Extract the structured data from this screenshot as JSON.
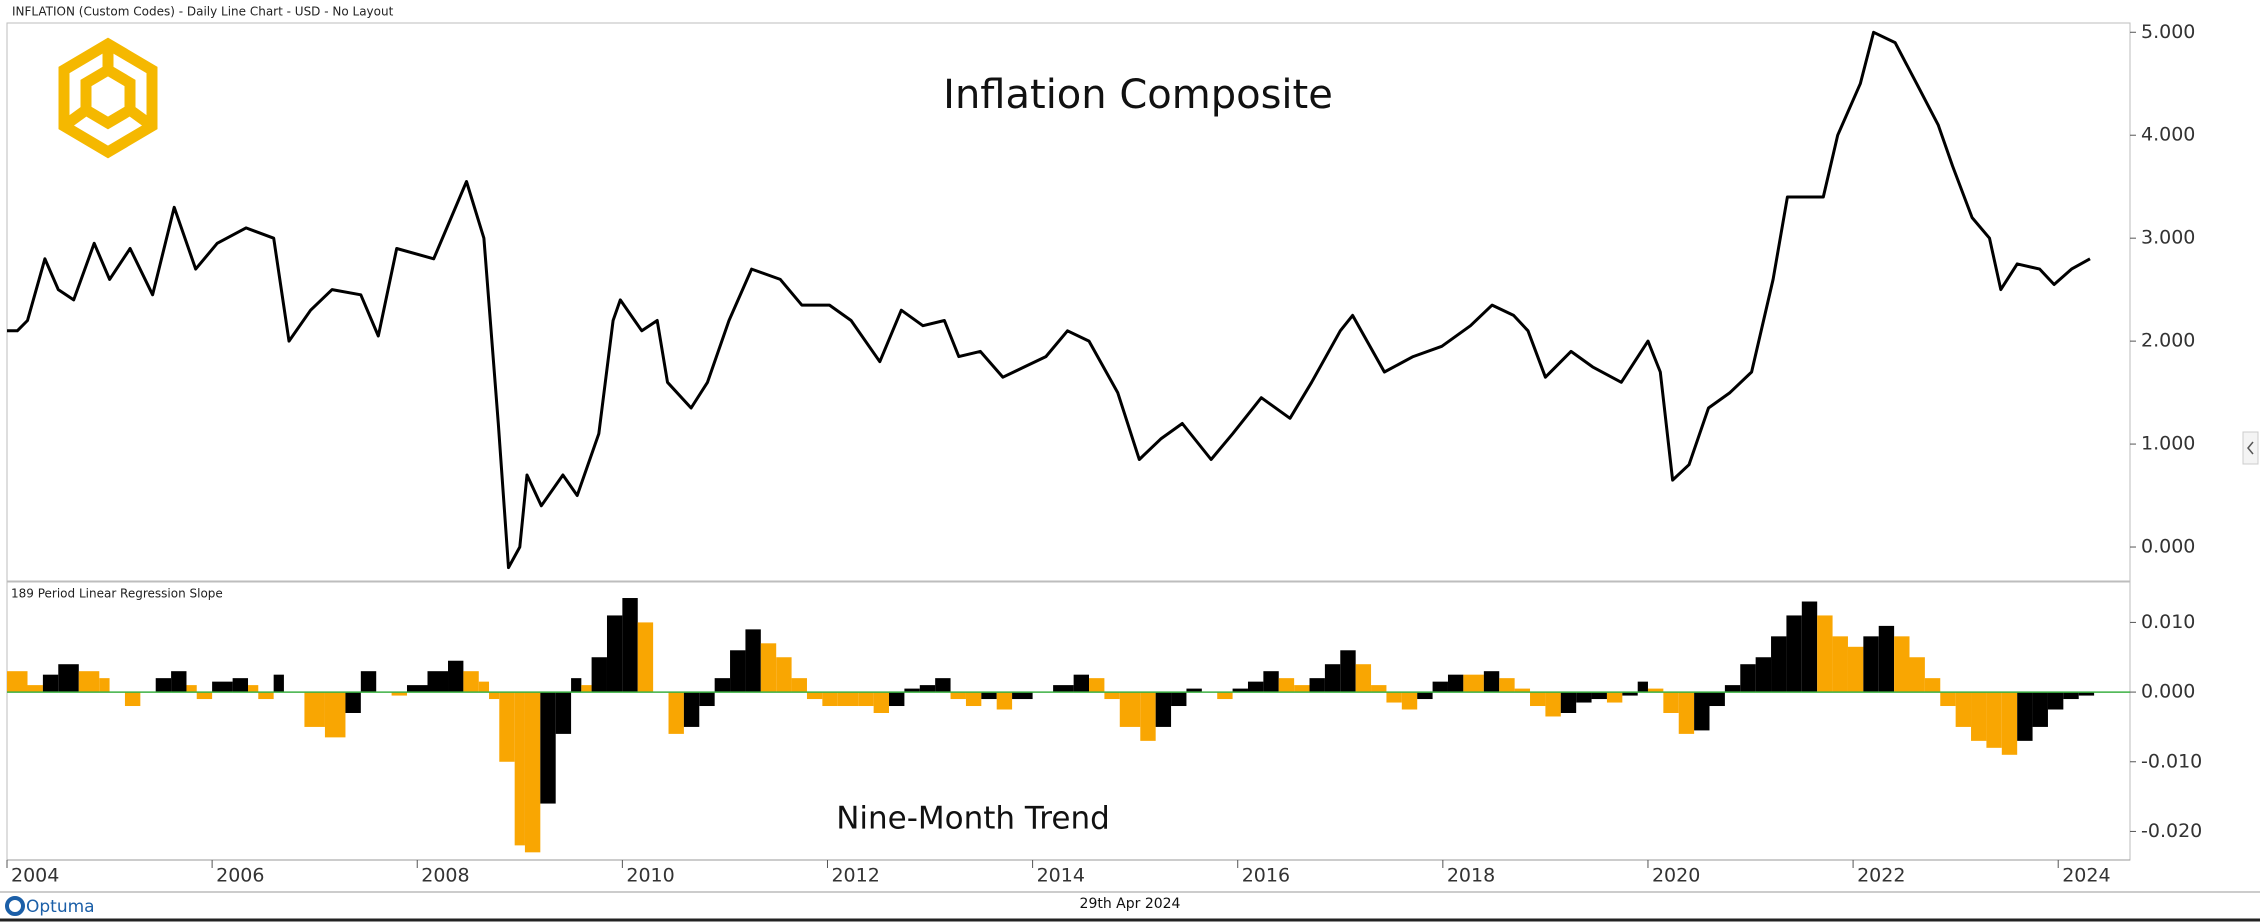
{
  "header": "INFLATION (Custom Codes) - Daily Line Chart - USD - No Layout",
  "footer": {
    "brand": "Optuma",
    "date": "29th Apr 2024"
  },
  "chart_data": [
    {
      "type": "line",
      "title": "Inflation Composite",
      "line_color": "#000000",
      "x": [
        2004.0,
        2004.1,
        2004.2,
        2004.37,
        2004.5,
        2004.65,
        2004.85,
        2005.0,
        2005.2,
        2005.42,
        2005.63,
        2005.84,
        2006.05,
        2006.33,
        2006.6,
        2006.75,
        2006.96,
        2007.17,
        2007.45,
        2007.62,
        2007.8,
        2008.16,
        2008.48,
        2008.65,
        2008.79,
        2008.89,
        2009.0,
        2009.07,
        2009.21,
        2009.42,
        2009.56,
        2009.77,
        2009.91,
        2009.98,
        2010.19,
        2010.34,
        2010.44,
        2010.67,
        2010.83,
        2011.04,
        2011.26,
        2011.54,
        2011.75,
        2012.02,
        2012.23,
        2012.51,
        2012.72,
        2012.93,
        2013.14,
        2013.28,
        2013.49,
        2013.71,
        2013.92,
        2014.13,
        2014.34,
        2014.55,
        2014.83,
        2015.04,
        2015.25,
        2015.46,
        2015.74,
        2015.95,
        2016.23,
        2016.51,
        2016.72,
        2017.0,
        2017.12,
        2017.43,
        2017.71,
        2017.99,
        2018.27,
        2018.48,
        2018.69,
        2018.83,
        2019.0,
        2019.25,
        2019.46,
        2019.74,
        2020.0,
        2020.12,
        2020.24,
        2020.4,
        2020.59,
        2020.8,
        2021.01,
        2021.22,
        2021.36,
        2021.71,
        2021.85,
        2022.07,
        2022.2,
        2022.41,
        2022.62,
        2022.83,
        2022.97,
        2023.16,
        2023.33,
        2023.44,
        2023.6,
        2023.82,
        2023.96,
        2024.13,
        2024.31
      ],
      "values": [
        2.1,
        2.1,
        2.2,
        2.8,
        2.5,
        2.4,
        2.95,
        2.6,
        2.9,
        2.45,
        3.3,
        2.7,
        2.95,
        3.1,
        3.0,
        2.0,
        2.3,
        2.5,
        2.45,
        2.05,
        2.9,
        2.8,
        3.55,
        3.0,
        1.2,
        -0.2,
        0.0,
        0.7,
        0.4,
        0.7,
        0.5,
        1.1,
        2.2,
        2.4,
        2.1,
        2.2,
        1.6,
        1.35,
        1.6,
        2.2,
        2.7,
        2.6,
        2.35,
        2.35,
        2.2,
        1.8,
        2.3,
        2.15,
        2.2,
        1.85,
        1.9,
        1.65,
        1.75,
        1.85,
        2.1,
        2.0,
        1.5,
        0.85,
        1.05,
        1.2,
        0.85,
        1.1,
        1.45,
        1.25,
        1.6,
        2.1,
        2.25,
        1.7,
        1.85,
        1.95,
        2.15,
        2.35,
        2.25,
        2.1,
        1.65,
        1.9,
        1.75,
        1.6,
        2.0,
        1.7,
        0.65,
        0.8,
        1.35,
        1.5,
        1.7,
        2.6,
        3.4,
        3.4,
        4.0,
        4.5,
        5.0,
        4.9,
        4.5,
        4.1,
        3.7,
        3.2,
        3.0,
        2.5,
        2.75,
        2.7,
        2.55,
        2.7,
        2.8
      ],
      "xlim": [
        2004,
        2024.7
      ],
      "ylim": [
        -0.33,
        5.09
      ],
      "yticks": [
        {
          "value": 0,
          "label": "0.000"
        },
        {
          "value": 1,
          "label": "1.000"
        },
        {
          "value": 2,
          "label": "2.000"
        },
        {
          "value": 3,
          "label": "3.000"
        },
        {
          "value": 4,
          "label": "4.000"
        },
        {
          "value": 5,
          "label": "5.000"
        }
      ]
    },
    {
      "type": "bar",
      "title": "Nine-Month Trend",
      "indicator": "189 Period Linear Regression Slope",
      "up_color": "#000000",
      "down_color": "#f9a602",
      "zero_line_color": "#3cb043",
      "x": [
        2004.0,
        2004.2,
        2004.35,
        2004.5,
        2004.7,
        2004.9,
        2005.0,
        2005.15,
        2005.3,
        2005.45,
        2005.6,
        2005.75,
        2005.85,
        2006.0,
        2006.2,
        2006.35,
        2006.45,
        2006.6,
        2006.7,
        2006.9,
        2007.1,
        2007.3,
        2007.45,
        2007.6,
        2007.75,
        2007.9,
        2008.1,
        2008.3,
        2008.45,
        2008.6,
        2008.7,
        2008.8,
        2008.95,
        2009.05,
        2009.2,
        2009.35,
        2009.5,
        2009.6,
        2009.7,
        2009.85,
        2010.0,
        2010.15,
        2010.3,
        2010.45,
        2010.6,
        2010.75,
        2010.9,
        2011.05,
        2011.2,
        2011.35,
        2011.5,
        2011.65,
        2011.8,
        2011.95,
        2012.1,
        2012.3,
        2012.45,
        2012.6,
        2012.75,
        2012.9,
        2013.05,
        2013.2,
        2013.35,
        2013.5,
        2013.65,
        2013.8,
        2014.0,
        2014.2,
        2014.4,
        2014.55,
        2014.7,
        2014.85,
        2015.05,
        2015.2,
        2015.35,
        2015.5,
        2015.65,
        2015.8,
        2015.95,
        2016.1,
        2016.25,
        2016.4,
        2016.55,
        2016.7,
        2016.85,
        2017.0,
        2017.15,
        2017.3,
        2017.45,
        2017.6,
        2017.75,
        2017.9,
        2018.05,
        2018.2,
        2018.4,
        2018.55,
        2018.7,
        2018.85,
        2019.0,
        2019.15,
        2019.3,
        2019.45,
        2019.6,
        2019.75,
        2019.9,
        2020.0,
        2020.15,
        2020.3,
        2020.45,
        2020.6,
        2020.75,
        2020.9,
        2021.05,
        2021.2,
        2021.35,
        2021.5,
        2021.65,
        2021.8,
        2021.95,
        2022.1,
        2022.25,
        2022.4,
        2022.55,
        2022.7,
        2022.85,
        2023.0,
        2023.15,
        2023.3,
        2023.45,
        2023.6,
        2023.75,
        2023.9,
        2024.05,
        2024.2,
        2024.35
      ],
      "values": [
        0.003,
        0.001,
        0.0025,
        0.004,
        0.003,
        0.002,
        0,
        -0.002,
        0,
        0.002,
        0.003,
        0.001,
        -0.001,
        0.0015,
        0.002,
        0.001,
        -0.001,
        0.0025,
        0,
        -0.005,
        -0.0065,
        -0.003,
        0.003,
        0,
        -0.0005,
        0.001,
        0.003,
        0.0045,
        0.003,
        0.0015,
        -0.001,
        -0.01,
        -0.022,
        -0.023,
        -0.016,
        -0.006,
        0.002,
        0.001,
        0.005,
        0.011,
        0.0135,
        0.01,
        0,
        -0.006,
        -0.005,
        -0.002,
        0.002,
        0.006,
        0.009,
        0.007,
        0.005,
        0.002,
        -0.001,
        -0.002,
        -0.002,
        -0.002,
        -0.003,
        -0.002,
        0.0005,
        0.001,
        0.002,
        -0.001,
        -0.002,
        -0.001,
        -0.0025,
        -0.001,
        0,
        0.001,
        0.0025,
        0.002,
        -0.001,
        -0.005,
        -0.007,
        -0.005,
        -0.002,
        0.0005,
        0,
        -0.001,
        0.0005,
        0.0015,
        0.003,
        0.002,
        0.001,
        0.002,
        0.004,
        0.006,
        0.004,
        0.001,
        -0.0015,
        -0.0025,
        -0.001,
        0.0015,
        0.0025,
        0.0025,
        0.003,
        0.002,
        0.0005,
        -0.002,
        -0.0035,
        -0.003,
        -0.0015,
        -0.001,
        -0.0015,
        -0.0005,
        0.0015,
        0.0005,
        -0.003,
        -0.006,
        -0.0055,
        -0.002,
        0.001,
        0.004,
        0.005,
        0.008,
        0.011,
        0.013,
        0.011,
        0.008,
        0.0065,
        0.008,
        0.0095,
        0.008,
        0.005,
        0.002,
        -0.002,
        -0.005,
        -0.007,
        -0.008,
        -0.009,
        -0.007,
        -0.005,
        -0.0025,
        -0.001,
        -0.0005,
        0
      ],
      "xlim": [
        2004,
        2024.7
      ],
      "ylim": [
        -0.0241,
        0.0158
      ],
      "xticks": [
        2004,
        2006,
        2008,
        2010,
        2012,
        2014,
        2016,
        2018,
        2020,
        2022,
        2024
      ],
      "yticks": [
        {
          "value": -0.02,
          "label": "-0.020"
        },
        {
          "value": -0.01,
          "label": "-0.010"
        },
        {
          "value": 0,
          "label": "0.000"
        },
        {
          "value": 0.01,
          "label": "0.010"
        }
      ]
    }
  ]
}
